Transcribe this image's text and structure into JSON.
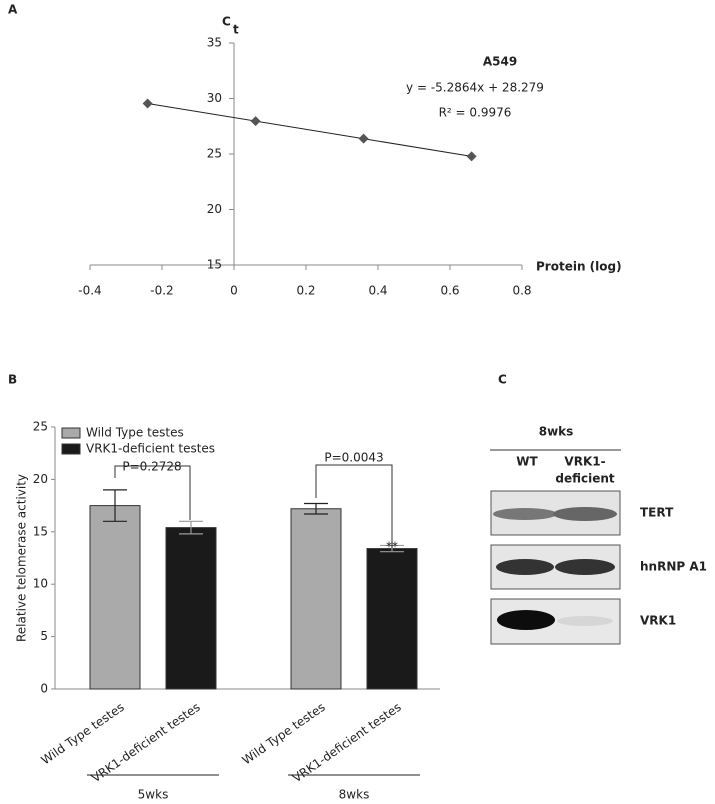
{
  "chart_data": [
    {
      "type": "scatter",
      "panel": "A",
      "title": "A549",
      "equation": "y = -5.2864x + 28.279",
      "r_squared": "R² = 0.9976",
      "y_label": "C",
      "y_label_sub": "t",
      "x_label": "Protein (log)",
      "x": [
        -0.24,
        0.06,
        0.36,
        0.66
      ],
      "series": [
        {
          "name": "A549",
          "color": "#555555",
          "values": [
            29.55,
            27.96,
            26.38,
            24.79
          ]
        }
      ],
      "xlim": [
        -0.4,
        0.8
      ],
      "xticks": [
        -0.4,
        -0.2,
        0,
        0.2,
        0.4,
        0.6,
        0.8
      ],
      "ylim": [
        15,
        35
      ],
      "yticks": [
        15,
        20,
        25,
        30,
        35
      ],
      "trendline": true,
      "grid": false
    },
    {
      "type": "bar",
      "panel": "B",
      "y_label": "Relative telomerase activity",
      "categories": [
        "5wks",
        "8wks"
      ],
      "series": [
        {
          "name": "Wild Type testes",
          "color": "#aaaaaa",
          "values": [
            17.5,
            17.2
          ],
          "errors": [
            1.5,
            0.5
          ]
        },
        {
          "name": "VRK1-deficient testes",
          "color": "#1a1a1a",
          "values": [
            15.4,
            13.4
          ],
          "errors": [
            0.6,
            0.3
          ]
        }
      ],
      "annotations": [
        "P=0.2728",
        "P=0.0043",
        "**"
      ],
      "ylim": [
        0,
        25
      ],
      "yticks": [
        0,
        5,
        10,
        15,
        20,
        25
      ],
      "legend": "top-left",
      "grid": false
    }
  ],
  "blot": {
    "panel": "C",
    "title": "8wks",
    "columns": [
      [
        "WT"
      ],
      [
        "VRK1-",
        "deficient"
      ]
    ],
    "rows": [
      "TERT",
      "hnRNP A1",
      "VRK1"
    ]
  }
}
